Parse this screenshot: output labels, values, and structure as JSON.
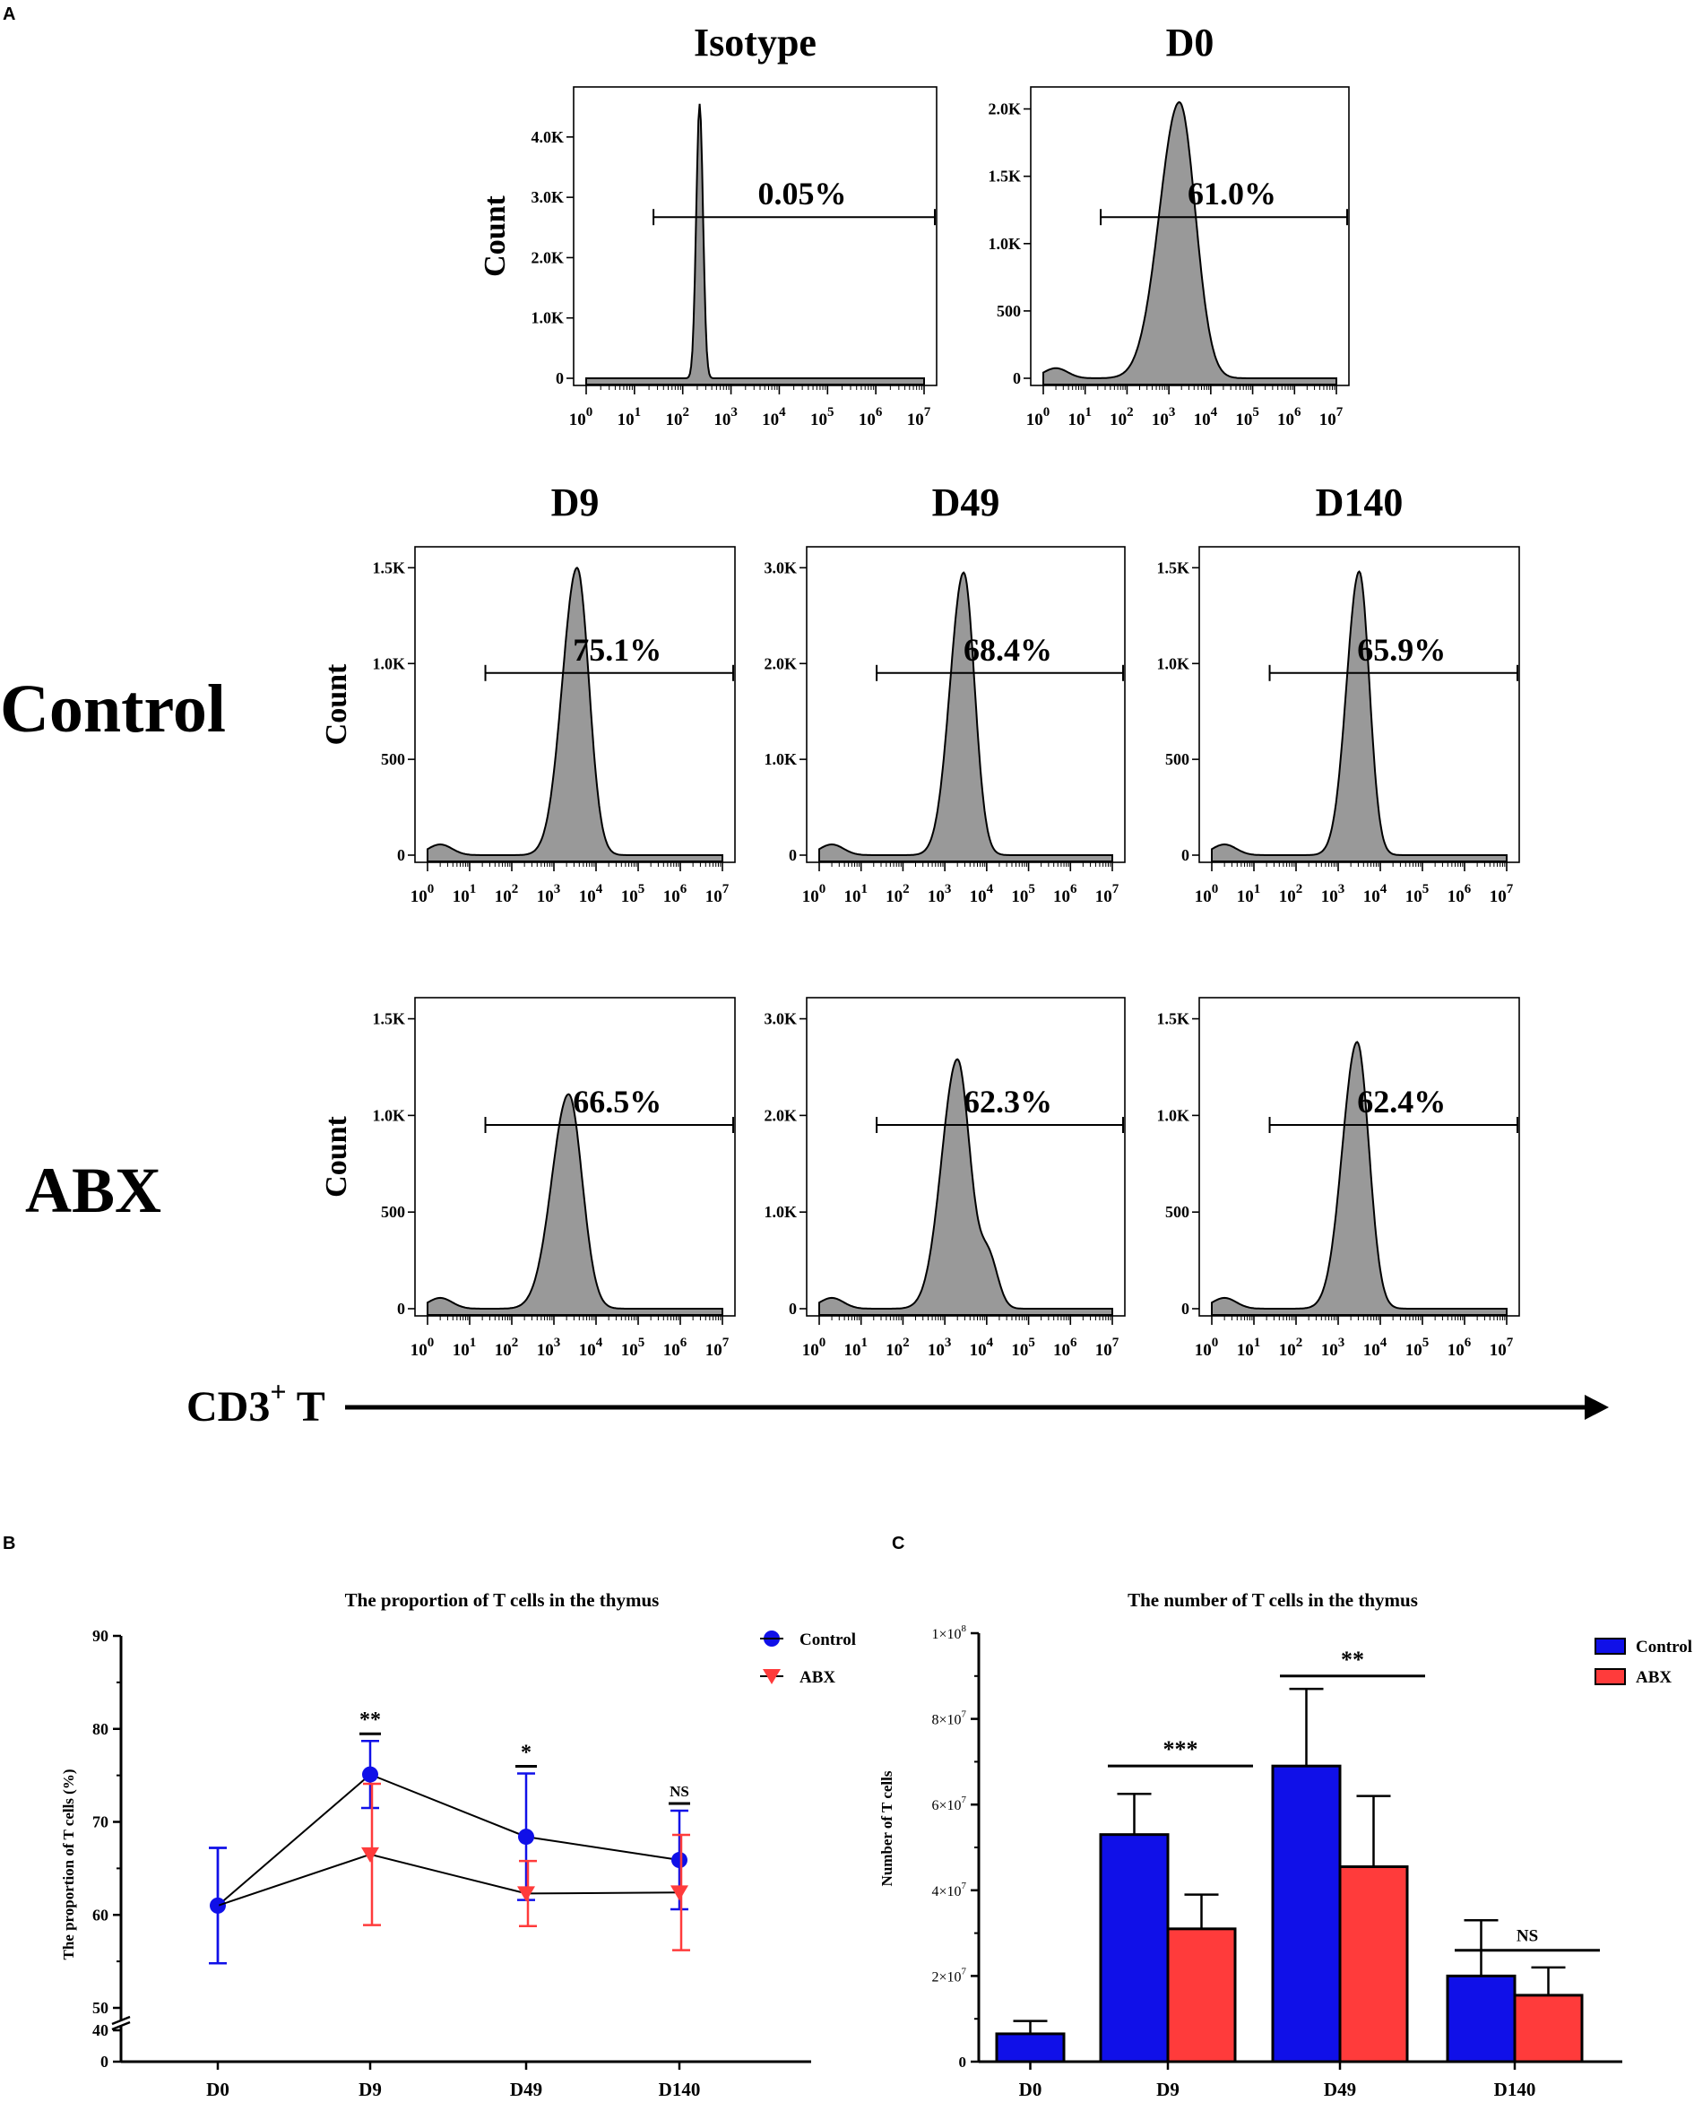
{
  "figure": {
    "panel_labels": {
      "a": "A",
      "b": "B",
      "c": "C"
    },
    "row_labels": {
      "control": "Control",
      "abx": "ABX"
    },
    "arrow_label": {
      "main": "CD3",
      "sup": "+",
      "suffix": " T"
    },
    "colors": {
      "control": "#1010e8",
      "abx": "#ff3b3b",
      "histogram_fill": "#999999",
      "line": "#000000"
    }
  },
  "histograms": [
    {
      "title": "Isotype",
      "ylabel": "Count",
      "yticks": [
        "0",
        "1.0K",
        "2.0K",
        "3.0K",
        "4.0K"
      ],
      "ytick_values": [
        0,
        1000,
        2000,
        3000,
        4000
      ],
      "ymax": 4800,
      "gate_percent": "0.05%",
      "peak_log": 2.35,
      "peak_count": 4550,
      "width": 0.07,
      "shape": "narrow"
    },
    {
      "title": "D0",
      "ylabel": "",
      "yticks": [
        "0",
        "500",
        "1.0K",
        "1.5K",
        "2.0K"
      ],
      "ytick_values": [
        0,
        500,
        1000,
        1500,
        2000
      ],
      "ymax": 2150,
      "gate_percent": "61.0%",
      "peak_log": 3.25,
      "peak_count": 2050,
      "width": 0.38,
      "shape": "broad"
    },
    {
      "title": "D9",
      "ylabel": "Count",
      "yticks": [
        "0",
        "500",
        "1.0K",
        "1.5K"
      ],
      "ytick_values": [
        0,
        500,
        1000,
        1500
      ],
      "ymax": 1600,
      "gate_percent": "75.1%",
      "peak_log": 3.55,
      "peak_count": 1500,
      "width": 0.28,
      "shape": "normal"
    },
    {
      "title": "D49",
      "ylabel": "",
      "yticks": [
        "0",
        "1.0K",
        "2.0K",
        "3.0K"
      ],
      "ytick_values": [
        0,
        1000,
        2000,
        3000
      ],
      "ymax": 3200,
      "gate_percent": "68.4%",
      "peak_log": 3.45,
      "peak_count": 2950,
      "width": 0.26,
      "shape": "normal"
    },
    {
      "title": "D140",
      "ylabel": "",
      "yticks": [
        "0",
        "500",
        "1.0K",
        "1.5K"
      ],
      "ytick_values": [
        0,
        500,
        1000,
        1500
      ],
      "ymax": 1600,
      "gate_percent": "65.9%",
      "peak_log": 3.5,
      "peak_count": 1480,
      "width": 0.24,
      "shape": "normal"
    },
    {
      "title": "",
      "ylabel": "Count",
      "yticks": [
        "0",
        "500",
        "1.0K",
        "1.5K"
      ],
      "ytick_values": [
        0,
        500,
        1000,
        1500
      ],
      "ymax": 1600,
      "gate_percent": "66.5%",
      "peak_log": 3.35,
      "peak_count": 1110,
      "width": 0.32,
      "shape": "normal"
    },
    {
      "title": "",
      "ylabel": "",
      "yticks": [
        "0",
        "1.0K",
        "2.0K",
        "3.0K"
      ],
      "ytick_values": [
        0,
        1000,
        2000,
        3000
      ],
      "ymax": 3200,
      "gate_percent": "62.3%",
      "peak_log": 3.3,
      "peak_count": 2580,
      "width": 0.3,
      "shape": "shoulder"
    },
    {
      "title": "",
      "ylabel": "",
      "yticks": [
        "0",
        "500",
        "1.0K",
        "1.5K"
      ],
      "ytick_values": [
        0,
        500,
        1000,
        1500
      ],
      "ymax": 1600,
      "gate_percent": "62.4%",
      "peak_log": 3.45,
      "peak_count": 1380,
      "width": 0.28,
      "shape": "normal"
    }
  ],
  "histogram_x_ticks": [
    {
      "base": "10",
      "exp": "0"
    },
    {
      "base": "10",
      "exp": "1"
    },
    {
      "base": "10",
      "exp": "2"
    },
    {
      "base": "10",
      "exp": "3"
    },
    {
      "base": "10",
      "exp": "4"
    },
    {
      "base": "10",
      "exp": "5"
    },
    {
      "base": "10",
      "exp": "6"
    },
    {
      "base": "10",
      "exp": "7"
    }
  ],
  "chart_data": [
    {
      "type": "line",
      "title": "The proportion of T cells in the thymus",
      "xlabel": "",
      "ylabel": "The proportion of T cells (%)",
      "categories": [
        "D0",
        "D9",
        "D49",
        "D140"
      ],
      "y_ticks": [
        "0",
        "40",
        "50",
        "60",
        "70",
        "80",
        "90"
      ],
      "ylim_upper": [
        50,
        90
      ],
      "axis_break": true,
      "series": [
        {
          "name": "Control",
          "values": [
            61.0,
            75.1,
            68.4,
            65.9
          ],
          "error": [
            6.2,
            3.6,
            6.8,
            5.3
          ],
          "marker": "circle"
        },
        {
          "name": "ABX",
          "values": [
            61.0,
            66.5,
            62.3,
            62.4
          ],
          "error": [
            6.2,
            7.6,
            3.5,
            6.2
          ],
          "marker": "triangle-down"
        }
      ],
      "significance": [
        "",
        "**",
        "*",
        "NS"
      ],
      "legend_position": "top-right"
    },
    {
      "type": "bar",
      "title": "The number of T cells in the thymus",
      "xlabel": "",
      "ylabel": "Number of T cells",
      "categories": [
        "D0",
        "D9",
        "D49",
        "D140"
      ],
      "y_ticks": [
        {
          "label": "0",
          "mant": "",
          "exp": ""
        },
        {
          "label": "",
          "mant": "2×10",
          "exp": "7"
        },
        {
          "label": "",
          "mant": "4×10",
          "exp": "7"
        },
        {
          "label": "",
          "mant": "6×10",
          "exp": "7"
        },
        {
          "label": "",
          "mant": "8×10",
          "exp": "7"
        },
        {
          "label": "",
          "mant": "1×10",
          "exp": "8"
        }
      ],
      "y_tick_values": [
        0,
        20000000,
        40000000,
        60000000,
        80000000,
        100000000
      ],
      "ylim": [
        0,
        100000000
      ],
      "series": [
        {
          "name": "Control",
          "values": [
            6500000,
            53000000,
            69000000,
            20000000
          ],
          "error": [
            3000000,
            9500000,
            18000000,
            13000000
          ]
        },
        {
          "name": "ABX",
          "values": [
            null,
            31000000,
            45500000,
            15500000
          ],
          "error": [
            null,
            8000000,
            16500000,
            6500000
          ]
        }
      ],
      "significance": [
        "",
        "***",
        "**",
        "NS"
      ],
      "legend_position": "top-right"
    }
  ]
}
